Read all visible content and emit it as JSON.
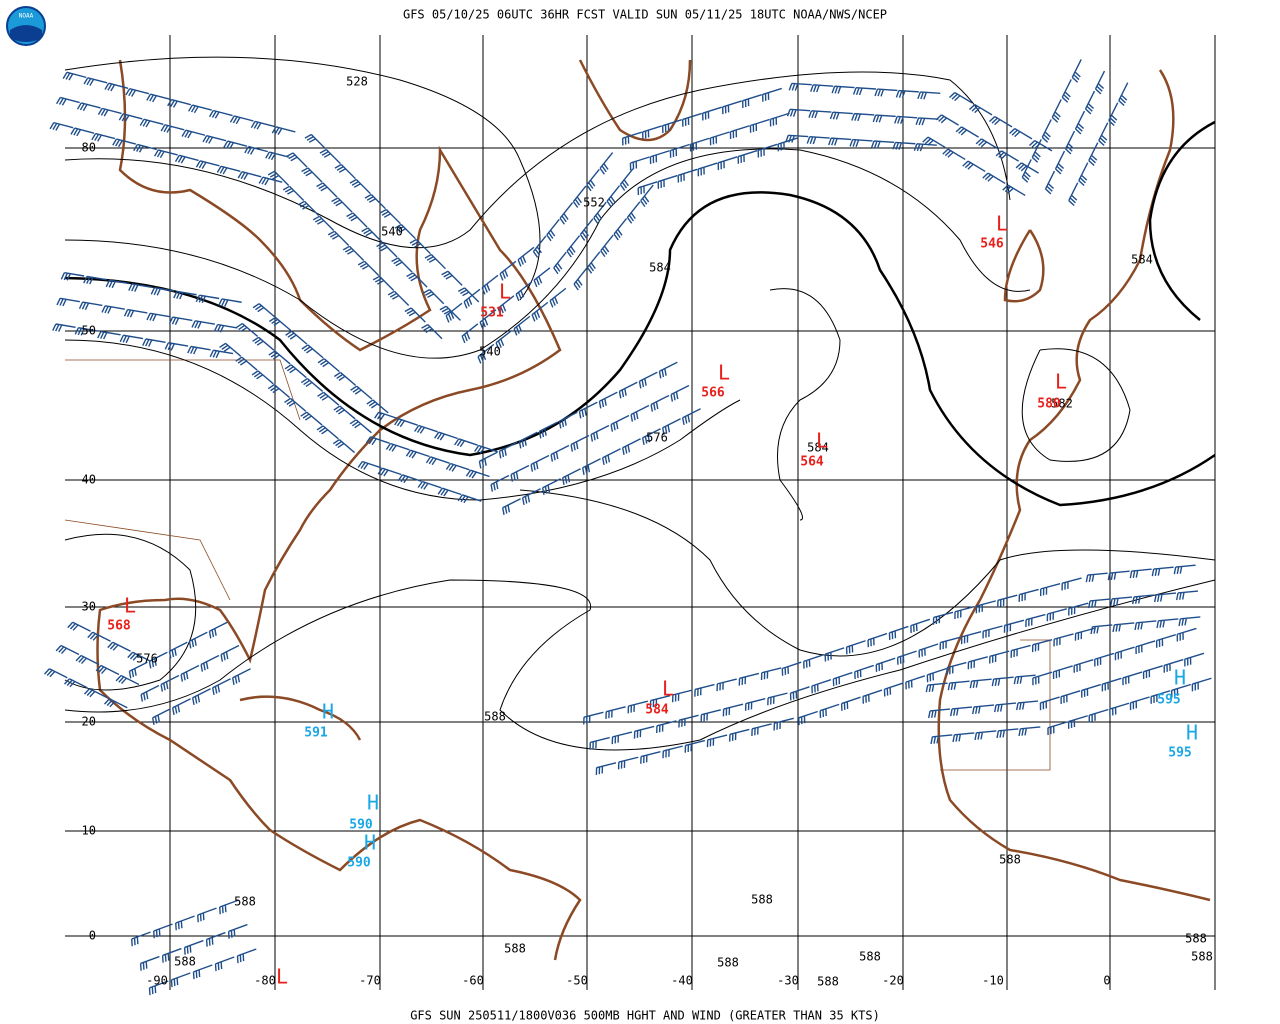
{
  "header": {
    "title": "GFS 05/10/25 06UTC 36HR FCST VALID SUN 05/11/25 18UTC NOAA/NWS/NCEP"
  },
  "footer": {
    "caption": "GFS SUN 250511/1800V036 500MB HGHT AND WIND (GREATER THAN 35 KTS)"
  },
  "logo": {
    "text": "NOAA"
  },
  "grid": {
    "lat_labels": [
      "80",
      "50",
      "40",
      "30",
      "20",
      "10",
      "0"
    ],
    "lon_labels": [
      "-90",
      "-80",
      "-70",
      "-60",
      "-50",
      "-40",
      "-30",
      "-20",
      "-10",
      "0"
    ]
  },
  "contour_labels": [
    "528",
    "552",
    "540",
    "584",
    "540",
    "576",
    "584",
    "584",
    "576",
    "588",
    "588",
    "588",
    "588",
    "588",
    "588",
    "588",
    "588",
    "588",
    "588",
    "588",
    "582"
  ],
  "centers": [
    {
      "symbol": "L",
      "value": "531"
    },
    {
      "symbol": "L",
      "value": "566"
    },
    {
      "symbol": "L",
      "value": "564"
    },
    {
      "symbol": "L",
      "value": "546"
    },
    {
      "symbol": "L",
      "value": "580"
    },
    {
      "symbol": "L",
      "value": "568"
    },
    {
      "symbol": "L",
      "value": "584"
    },
    {
      "symbol": "L"
    },
    {
      "symbol": "H",
      "value": "591"
    },
    {
      "symbol": "H",
      "value": "590"
    },
    {
      "symbol": "H",
      "value": "590"
    },
    {
      "symbol": "H",
      "value": "595"
    },
    {
      "symbol": "H",
      "value": "595"
    }
  ]
}
